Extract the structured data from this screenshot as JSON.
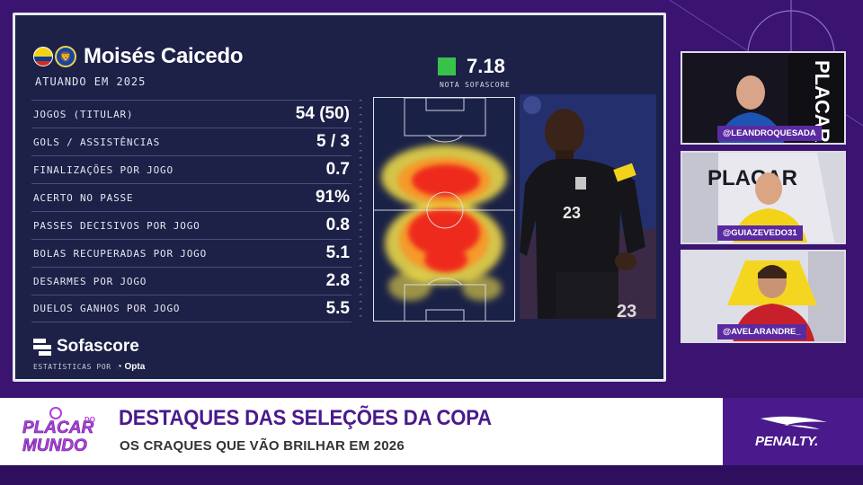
{
  "player": {
    "name": "Moisés Caicedo",
    "season": "ATUANDO EM 2025",
    "flag_icon": "ecuador-flag-icon",
    "club_icon": "chelsea-crest-icon"
  },
  "rating": {
    "value": "7.18",
    "label": "NOTA SOFASCORE",
    "color": "#38c24a"
  },
  "stats": [
    {
      "label": "JOGOS (TITULAR)",
      "value": "54 (50)"
    },
    {
      "label": "GOLS / ASSISTÊNCIAS",
      "value": "5 / 3"
    },
    {
      "label": "FINALIZAÇÕES POR JOGO",
      "value": "0.7"
    },
    {
      "label": "ACERTO NO PASSE",
      "value": "91%"
    },
    {
      "label": "PASSES DECISIVOS POR JOGO",
      "value": "0.8"
    },
    {
      "label": "BOLAS RECUPERADAS POR JOGO",
      "value": "5.1"
    },
    {
      "label": "DESARMES POR JOGO",
      "value": "2.8"
    },
    {
      "label": "DUELOS GANHOS POR JOGO",
      "value": "5.5"
    }
  ],
  "brand": {
    "name": "Sofascore",
    "by_label": "ESTATÍSTICAS POR",
    "partner": "Opta"
  },
  "photo": {
    "shirt_number": "23"
  },
  "cams": [
    {
      "handle": "@LEANDROQUESADA"
    },
    {
      "handle": "@GUIAZEVEDO31"
    },
    {
      "handle": "@AVELARANDRE_"
    }
  ],
  "lower_third": {
    "title": "DESTAQUES DAS SELEÇÕES DA COPA",
    "subtitle": "OS CRAQUES QUE VÃO BRILHAR EM 2026",
    "show_logo_line1": "PLACAR",
    "show_logo_small": "DO",
    "show_logo_line2": "MUNDO",
    "sponsor": "PENALTY.",
    "accent": "#4a1a8c"
  },
  "studio_text": "PLACAR"
}
